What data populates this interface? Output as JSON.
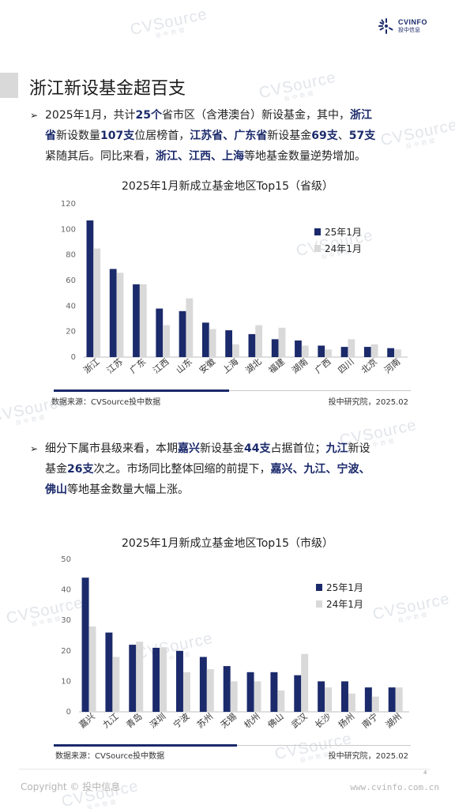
{
  "header": {
    "logo_brand": "CVINFO",
    "logo_brand_cn": "投中信息"
  },
  "watermark": {
    "text": "CVSource",
    "sub": "投中数据"
  },
  "page_title": "浙江新设基金超百支",
  "para1": {
    "s1": "2025年1月，共计",
    "b1": "25个",
    "s2": "省市区（含港澳台）新设基金，其中，",
    "b2": "浙江",
    "b3": "省",
    "s3": "新设数量",
    "b4": "107支",
    "s4": "位居榜首，",
    "b5": "江苏省、广东省",
    "s5": "新设基金",
    "b6": "69支",
    "s6": "、",
    "b7": "57支",
    "s7": "紧随其后。同比来看，",
    "b8": "浙江、江西、上海",
    "s8": "等地基金数量逆势增加。"
  },
  "para2": {
    "s1": "细分下属市县级来看，本期",
    "b1": "嘉兴",
    "s2": "新设基金",
    "b2": "44支",
    "s3": "占据首位；",
    "b3": "九江",
    "s4": "新设",
    "s5": "基金",
    "b4": "26支",
    "s6": "次之。市场同比整体回缩的前提下，",
    "b5": "嘉兴、九江、宁波、",
    "b6": "佛山",
    "s7": "等地基金数量大幅上涨。"
  },
  "chart_data": [
    {
      "type": "bar",
      "title": "2025年1月新成立基金地区Top15（省级）",
      "categories": [
        "浙江",
        "江苏",
        "广东",
        "江西",
        "山东",
        "安徽",
        "上海",
        "湖北",
        "福建",
        "湖南",
        "广西",
        "四川",
        "北京",
        "河南"
      ],
      "series": [
        {
          "name": "25年1月",
          "color": "#1b2a6b",
          "values": [
            107,
            69,
            57,
            38,
            36,
            27,
            21,
            18,
            14,
            13,
            9,
            8,
            8,
            7
          ]
        },
        {
          "name": "24年1月",
          "color": "#d9d9d9",
          "values": [
            85,
            66,
            57,
            25,
            46,
            22,
            10,
            25,
            23,
            9,
            6,
            14,
            10,
            6
          ]
        }
      ],
      "ylim": [
        0,
        120
      ],
      "yticks": [
        0,
        20,
        40,
        60,
        80,
        100,
        120
      ],
      "legend_position": "right",
      "source_left": "数据来源：CVSource投中数据",
      "source_right": "投中研究院，2025.02"
    },
    {
      "type": "bar",
      "title": "2025年1月新成立基金地区Top15（市级）",
      "categories": [
        "嘉兴",
        "九江",
        "青岛",
        "深圳",
        "宁波",
        "苏州",
        "无锡",
        "杭州",
        "佛山",
        "武汉",
        "长沙",
        "扬州",
        "南宁",
        "湖州"
      ],
      "series": [
        {
          "name": "25年1月",
          "color": "#1b2a6b",
          "values": [
            44,
            26,
            22,
            21,
            20,
            18,
            15,
            13,
            13,
            12,
            10,
            10,
            8,
            8
          ]
        },
        {
          "name": "24年1月",
          "color": "#d9d9d9",
          "values": [
            28,
            18,
            23,
            21,
            13,
            14,
            10,
            10,
            7,
            19,
            8,
            6,
            5,
            8
          ]
        }
      ],
      "ylim": [
        0,
        50
      ],
      "yticks": [
        0,
        10,
        20,
        30,
        40,
        50
      ],
      "legend_position": "right",
      "source_left": "数据来源：CVSource投中数据",
      "source_right": "投中研究院，2025.02"
    }
  ],
  "footer": {
    "page_number": "4",
    "copyright": "Copyright © 投中信息",
    "site": "www.cvinfo.com.cn"
  }
}
